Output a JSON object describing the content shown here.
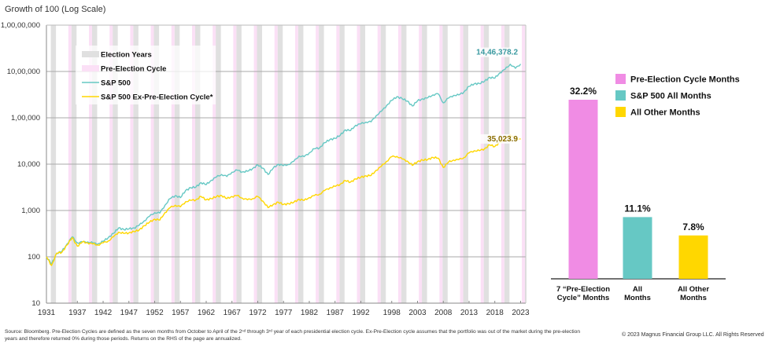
{
  "chart_data": [
    {
      "type": "line",
      "title": "Growth of 100 (Log Scale)",
      "yscale": "log",
      "ylim": [
        10,
        10000000
      ],
      "yticks": [
        10,
        100,
        1000,
        10000,
        100000,
        1000000,
        10000000
      ],
      "ytick_labels": [
        "10",
        "100",
        "1,000",
        "10,000",
        "1,00,000",
        "10,00,000",
        "1,00,00,000"
      ],
      "xlim": [
        1931,
        2024
      ],
      "xtick_labels": [
        "1931",
        "1937",
        "1942",
        "1947",
        "1952",
        "1957",
        "1962",
        "1967",
        "1972",
        "1977",
        "1982",
        "1987",
        "1992",
        "1998",
        "2003",
        "2008",
        "2013",
        "2018",
        "2023"
      ],
      "grid": true,
      "legend_position": "top-left",
      "legend": [
        {
          "label": "Election Years",
          "kind": "band",
          "color": "#e0e0e0"
        },
        {
          "label": "Pre-Election Cycle",
          "kind": "band",
          "color": "#fbe0f6"
        },
        {
          "label": "S&P 500",
          "kind": "line",
          "color": "#66c8c4"
        },
        {
          "label": "S&P 500 Ex-Pre-Election Cycle*",
          "kind": "line",
          "color": "#ffd700"
        }
      ],
      "election_years": [
        1932,
        1936,
        1940,
        1944,
        1948,
        1952,
        1956,
        1960,
        1964,
        1968,
        1972,
        1976,
        1980,
        1984,
        1988,
        1992,
        1996,
        2000,
        2004,
        2008,
        2012,
        2016,
        2020
      ],
      "pre_election_years": [
        1935,
        1939,
        1943,
        1947,
        1951,
        1955,
        1959,
        1963,
        1967,
        1971,
        1975,
        1979,
        1983,
        1987,
        1991,
        1995,
        1999,
        2003,
        2007,
        2011,
        2015,
        2019,
        2023
      ],
      "x": [
        1931,
        1932,
        1933,
        1934,
        1935,
        1936,
        1937,
        1938,
        1939,
        1940,
        1941,
        1942,
        1943,
        1944,
        1945,
        1946,
        1947,
        1948,
        1949,
        1950,
        1951,
        1952,
        1953,
        1954,
        1955,
        1956,
        1957,
        1958,
        1959,
        1960,
        1961,
        1962,
        1963,
        1964,
        1965,
        1966,
        1967,
        1968,
        1969,
        1970,
        1971,
        1972,
        1973,
        1974,
        1975,
        1976,
        1977,
        1978,
        1979,
        1980,
        1981,
        1982,
        1983,
        1984,
        1985,
        1986,
        1987,
        1988,
        1989,
        1990,
        1991,
        1992,
        1993,
        1994,
        1995,
        1996,
        1997,
        1998,
        1999,
        2000,
        2001,
        2002,
        2003,
        2004,
        2005,
        2006,
        2007,
        2008,
        2009,
        2010,
        2011,
        2012,
        2013,
        2014,
        2015,
        2016,
        2017,
        2018,
        2019,
        2020,
        2021,
        2022,
        2023
      ],
      "series": [
        {
          "name": "S&P 500",
          "color": "#66c8c4",
          "values": [
            100,
            70,
            120,
            130,
            190,
            270,
            200,
            210,
            210,
            200,
            190,
            215,
            260,
            320,
            420,
            390,
            400,
            420,
            480,
            600,
            750,
            900,
            880,
            1300,
            1800,
            2100,
            1900,
            2700,
            3100,
            3200,
            4000,
            3600,
            4500,
            5300,
            6000,
            5400,
            6700,
            7400,
            6800,
            7000,
            8000,
            9600,
            8200,
            6000,
            8200,
            10000,
            9300,
            9900,
            11500,
            15000,
            14500,
            17500,
            21500,
            22500,
            29000,
            34000,
            36000,
            42000,
            55000,
            53000,
            69000,
            74000,
            81000,
            82000,
            112000,
            138000,
            184000,
            237000,
            286000,
            260000,
            230000,
            180000,
            232000,
            257000,
            270000,
            313000,
            330000,
            210000,
            265000,
            305000,
            311000,
            360000,
            477000,
            542000,
            549000,
            615000,
            749000,
            716000,
            941000,
            1114000,
            1434000,
            1170000,
            1446378.2
          ]
        },
        {
          "name": "S&P 500 Ex-Pre-Election Cycle*",
          "color": "#ffd700",
          "values": [
            100,
            65,
            120,
            125,
            180,
            260,
            170,
            210,
            200,
            190,
            180,
            200,
            220,
            270,
            340,
            320,
            330,
            350,
            380,
            470,
            560,
            650,
            620,
            900,
            1150,
            1300,
            1200,
            1550,
            1650,
            1700,
            2000,
            1700,
            1800,
            2000,
            2100,
            1800,
            2000,
            2100,
            1850,
            1700,
            1800,
            2000,
            1600,
            1150,
            1350,
            1500,
            1350,
            1400,
            1500,
            1750,
            1650,
            1900,
            2100,
            2250,
            2700,
            3100,
            3300,
            3700,
            4400,
            4100,
            4800,
            5200,
            5600,
            5700,
            7400,
            9000,
            11500,
            14500,
            14700,
            13000,
            11700,
            9400,
            11400,
            12200,
            12600,
            14000,
            13500,
            8500,
            11000,
            12300,
            12500,
            13800,
            17500,
            19500,
            19500,
            21500,
            26000,
            24000,
            30000,
            34000,
            43000,
            35000,
            35023.9
          ]
        }
      ],
      "annotations": [
        {
          "text": "14,46,378.2",
          "series": "S&P 500",
          "color": "#3a9aa0"
        },
        {
          "text": "35,023.9",
          "series": "S&P 500 Ex-Pre-Election Cycle*",
          "color": "#8a6d00"
        }
      ]
    },
    {
      "type": "bar",
      "title": "",
      "categories": [
        "7 “Pre-Election Cycle” Months",
        "All Months",
        "All Other Months"
      ],
      "category_lines": [
        [
          "7 “Pre-Election",
          "Cycle” Months"
        ],
        [
          "All",
          "Months"
        ],
        [
          "All Other",
          "Months"
        ]
      ],
      "values": [
        32.2,
        11.1,
        7.8
      ],
      "value_labels": [
        "32.2%",
        "11.1%",
        "7.8%"
      ],
      "colors": [
        "#f08ce4",
        "#66c8c4",
        "#ffd700"
      ],
      "unit": "%",
      "ylim": [
        0,
        35
      ],
      "legend_position": "top-right",
      "legend": [
        {
          "label": "Pre-Election Cycle Months",
          "color": "#f08ce4"
        },
        {
          "label": "S&P 500 All Months",
          "color": "#66c8c4"
        },
        {
          "label": "All Other Months",
          "color": "#ffd700"
        }
      ]
    }
  ],
  "footnote": "Source: Bloomberg. Pre-Election Cycles are defined as the seven months from October to April of the 2ⁿᵈ through 3ʳᵈ year of each presidential election cycle. Ex-Pre-Election cycle assumes that the portfolio was out of the market during the pre-election years and therefore returned 0% during those periods. Returns on the RHS of the page are annualized.",
  "copyright": "© 2023 Magnus Financial Group LLC. All Rights Reserved"
}
